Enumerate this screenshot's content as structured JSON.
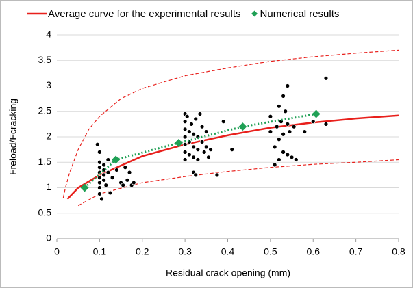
{
  "chart_data": {
    "type": "scatter",
    "x_label": "Residual crack opening (mm)",
    "y_label": "Freload/Fcracking",
    "xlim": [
      0,
      0.8
    ],
    "ylim": [
      0,
      4
    ],
    "xticks": [
      0,
      0.1,
      0.2,
      0.3,
      0.4,
      0.5,
      0.6,
      0.7,
      0.8
    ],
    "yticks": [
      0,
      0.5,
      1,
      1.5,
      2,
      2.5,
      3,
      3.5,
      4
    ],
    "grid": true,
    "legend": "top",
    "series": [
      {
        "name": "Average curve for the experimental results",
        "color": "#e8201c",
        "mode": "line",
        "x": [
          0.025,
          0.05,
          0.1,
          0.2,
          0.3,
          0.4,
          0.5,
          0.6,
          0.7,
          0.8
        ],
        "values": [
          0.78,
          1.0,
          1.25,
          1.62,
          1.85,
          2.03,
          2.18,
          2.28,
          2.36,
          2.42
        ]
      },
      {
        "color": "#e8201c",
        "mode": "dashed",
        "x": [
          0.015,
          0.02,
          0.03,
          0.05,
          0.075,
          0.1,
          0.15,
          0.2,
          0.3,
          0.4,
          0.5,
          0.6,
          0.7,
          0.8
        ],
        "values": [
          0.8,
          1.0,
          1.3,
          1.75,
          2.15,
          2.4,
          2.75,
          2.95,
          3.2,
          3.35,
          3.48,
          3.57,
          3.64,
          3.7
        ]
      },
      {
        "color": "#e8201c",
        "mode": "dashed",
        "x": [
          0.05,
          0.1,
          0.2,
          0.3,
          0.4,
          0.5,
          0.6,
          0.7,
          0.8
        ],
        "values": [
          0.65,
          0.88,
          1.1,
          1.22,
          1.32,
          1.4,
          1.46,
          1.5,
          1.55
        ]
      },
      {
        "color": "#000000",
        "mode": "markers",
        "x": [
          0.095,
          0.1,
          0.1,
          0.1,
          0.1,
          0.1,
          0.1,
          0.1,
          0.1,
          0.105,
          0.11,
          0.11,
          0.11,
          0.11,
          0.115,
          0.12,
          0.12,
          0.125,
          0.13,
          0.14,
          0.15,
          0.155,
          0.16,
          0.165,
          0.17,
          0.175,
          0.18,
          0.3,
          0.3,
          0.3,
          0.3,
          0.3,
          0.3,
          0.3,
          0.305,
          0.31,
          0.31,
          0.31,
          0.315,
          0.32,
          0.32,
          0.32,
          0.32,
          0.325,
          0.325,
          0.33,
          0.33,
          0.33,
          0.335,
          0.34,
          0.34,
          0.345,
          0.35,
          0.35,
          0.355,
          0.36,
          0.375,
          0.39,
          0.41,
          0.5,
          0.5,
          0.51,
          0.51,
          0.515,
          0.52,
          0.52,
          0.52,
          0.525,
          0.53,
          0.53,
          0.53,
          0.535,
          0.54,
          0.54,
          0.54,
          0.545,
          0.55,
          0.555,
          0.56,
          0.58,
          0.6,
          0.63,
          0.63
        ],
        "values": [
          1.85,
          1.7,
          1.5,
          1.4,
          1.3,
          1.2,
          1.1,
          1.0,
          0.88,
          0.78,
          1.45,
          1.35,
          1.25,
          1.15,
          1.05,
          1.55,
          1.3,
          0.9,
          1.2,
          1.35,
          1.1,
          1.05,
          1.4,
          1.15,
          1.3,
          1.05,
          1.1,
          2.45,
          2.3,
          2.15,
          2.0,
          1.85,
          1.7,
          1.55,
          2.4,
          2.1,
          1.9,
          1.65,
          2.25,
          2.05,
          1.8,
          1.6,
          1.3,
          1.25,
          2.35,
          2.0,
          1.75,
          1.55,
          2.45,
          2.2,
          1.9,
          1.7,
          2.1,
          1.8,
          1.6,
          1.75,
          1.25,
          2.3,
          1.75,
          2.4,
          2.1,
          1.8,
          1.45,
          2.2,
          2.6,
          1.95,
          1.55,
          2.3,
          2.8,
          2.05,
          1.7,
          2.5,
          3.0,
          2.25,
          1.65,
          2.1,
          1.6,
          2.2,
          1.55,
          2.1,
          2.3,
          2.25,
          3.15
        ]
      },
      {
        "name": "Numerical results",
        "color": "#1fa055",
        "mode": "markers+dotted",
        "x": [
          0.065,
          0.138,
          0.285,
          0.435,
          0.607
        ],
        "values": [
          1.0,
          1.55,
          1.88,
          2.2,
          2.45
        ]
      }
    ]
  }
}
